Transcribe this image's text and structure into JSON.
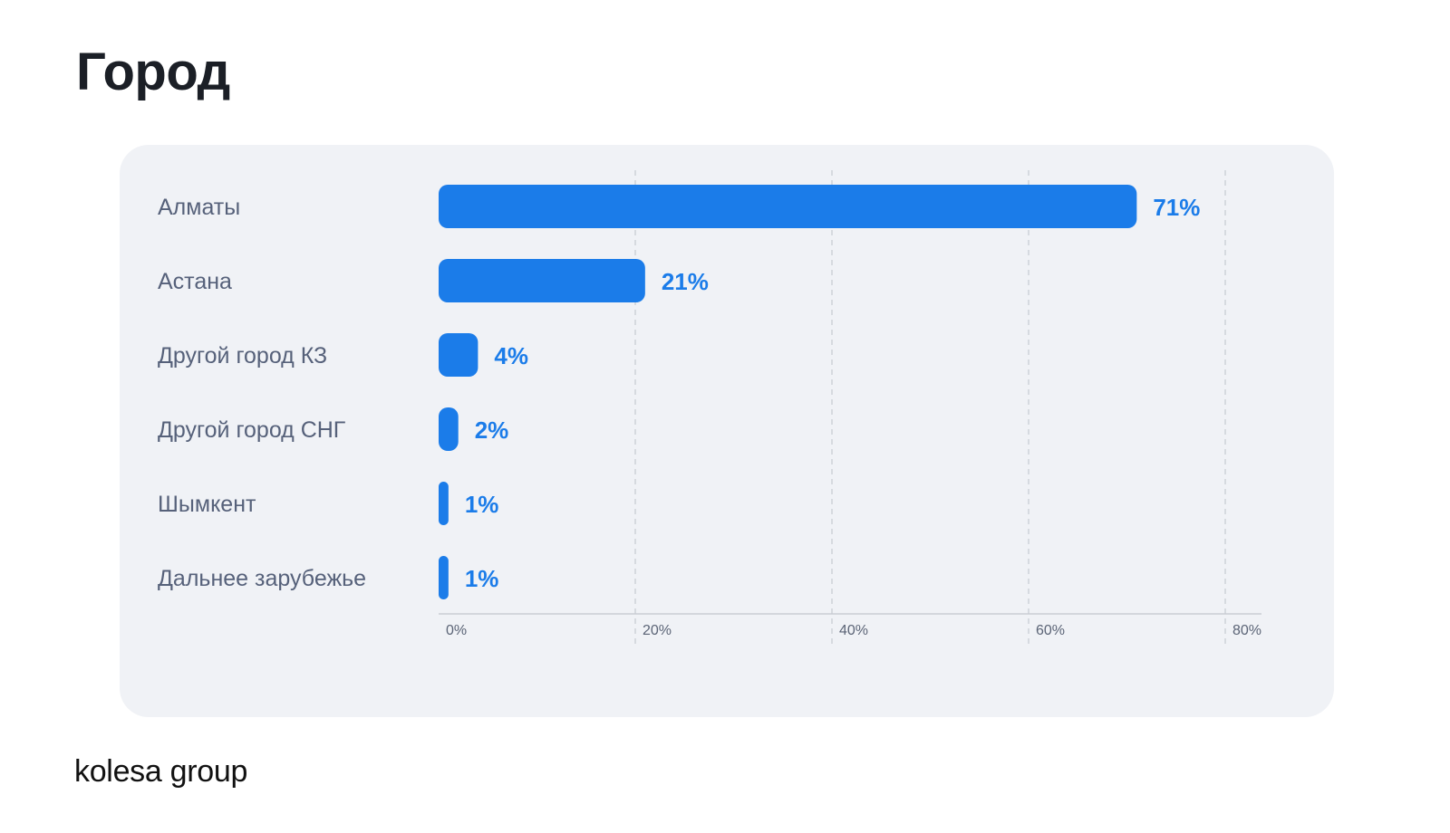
{
  "title": "Город",
  "logo": "kolesa group",
  "colors": {
    "bar": "#1b7ce9",
    "value_label": "#1b7ce9",
    "category_label": "#56617a",
    "tick_label": "#5b6476",
    "grid": "#c9ccd3",
    "card_background": "#f0f2f6"
  },
  "chart_data": {
    "type": "bar",
    "orientation": "horizontal",
    "categories": [
      "Алматы",
      "Астана",
      "Другой город КЗ",
      "Другой город СНГ",
      "Шымкент",
      "Дальнее зарубежье"
    ],
    "values": [
      71,
      21,
      4,
      2,
      1,
      1
    ],
    "value_labels": [
      "71%",
      "21%",
      "4%",
      "2%",
      "1%",
      "1%"
    ],
    "xlim": [
      0,
      80
    ],
    "xticks": [
      0,
      20,
      40,
      60,
      80
    ],
    "xtick_labels": [
      "0%",
      "20%",
      "40%",
      "60%",
      "80%"
    ],
    "grid": "vertical dashed",
    "legend": "none"
  }
}
